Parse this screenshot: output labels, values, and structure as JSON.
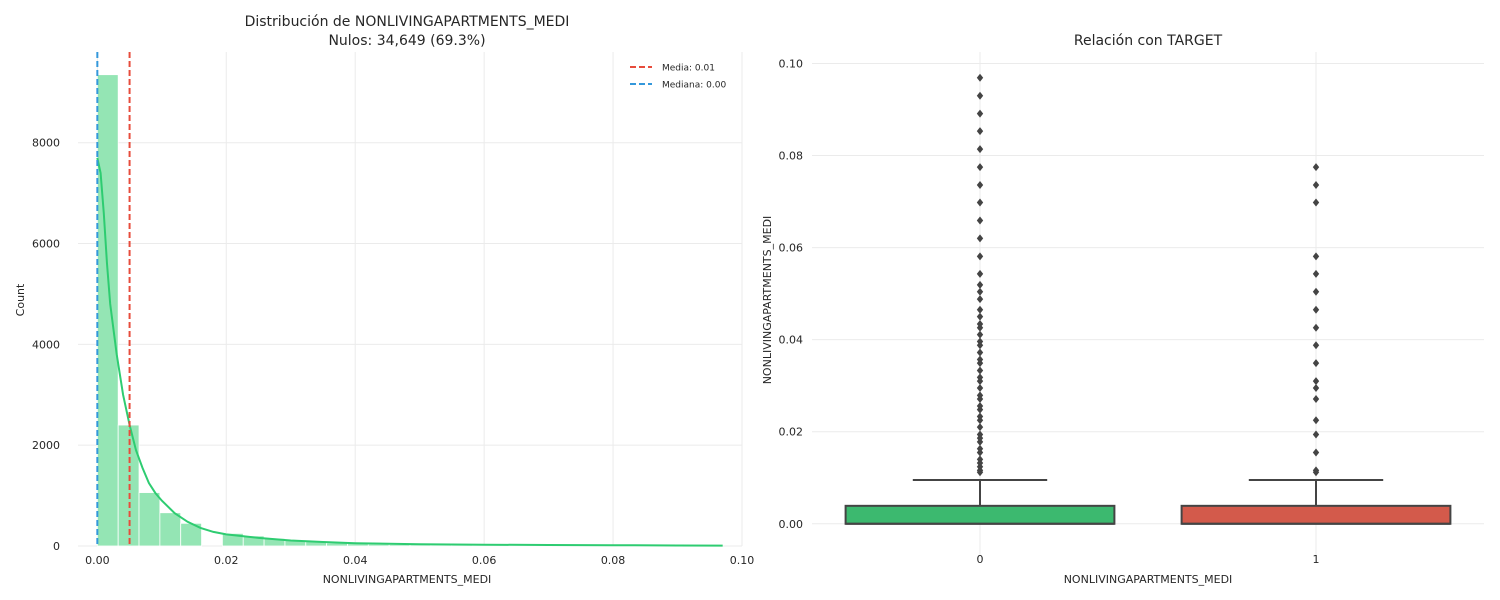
{
  "chart_data": [
    {
      "type": "histogram",
      "title_lines": [
        "Distribución de NONLIVINGAPARTMENTS_MEDI",
        "Nulos: 34,649 (69.3%)"
      ],
      "xlabel": "NONLIVINGAPARTMENTS_MEDI",
      "ylabel": "Count",
      "xlim": [
        -0.003,
        0.1
      ],
      "ylim": [
        0,
        9800
      ],
      "xticks": [
        0.0,
        0.02,
        0.04,
        0.06,
        0.08,
        0.1
      ],
      "xtick_labels": [
        "0.00",
        "0.02",
        "0.04",
        "0.06",
        "0.08",
        "0.10"
      ],
      "yticks": [
        0,
        2000,
        4000,
        6000,
        8000
      ],
      "ytick_labels": [
        "0",
        "2000",
        "4000",
        "6000",
        "8000"
      ],
      "grid": true,
      "bin_edges": [
        0.0,
        0.003233,
        0.006467,
        0.0097,
        0.012933,
        0.016167,
        0.0194,
        0.022633,
        0.025867,
        0.0291,
        0.032333,
        0.035567,
        0.0388,
        0.042033,
        0.045267,
        0.0485,
        0.051733,
        0.054967,
        0.0582,
        0.061433,
        0.064667,
        0.0679,
        0.071133,
        0.074367,
        0.0776,
        0.080833,
        0.084067,
        0.0873,
        0.090533,
        0.093767,
        0.097
      ],
      "counts": [
        9350,
        2400,
        1060,
        660,
        450,
        0,
        250,
        200,
        150,
        110,
        90,
        60,
        45,
        35,
        30,
        25,
        20,
        18,
        15,
        13,
        12,
        10,
        9,
        8,
        6,
        5,
        4,
        3,
        2,
        2
      ],
      "kde": {
        "x": [
          0.0,
          0.0005,
          0.001,
          0.0015,
          0.002,
          0.003,
          0.004,
          0.005,
          0.006,
          0.007,
          0.008,
          0.009,
          0.01,
          0.012,
          0.014,
          0.016,
          0.018,
          0.02,
          0.025,
          0.03,
          0.035,
          0.04,
          0.05,
          0.06,
          0.07,
          0.08,
          0.09,
          0.097
        ],
        "y": [
          7700,
          7400,
          6600,
          5600,
          4800,
          3800,
          3000,
          2400,
          1900,
          1550,
          1250,
          1050,
          900,
          650,
          480,
          360,
          280,
          230,
          160,
          110,
          80,
          55,
          35,
          25,
          20,
          15,
          10,
          8
        ]
      },
      "lines": [
        {
          "name": "Media: 0.01",
          "x": 0.005,
          "color": "#e74c3c"
        },
        {
          "name": "Mediana: 0.00",
          "x": 0.0,
          "color": "#3498db"
        }
      ],
      "legend_loc": "upper right",
      "colors": {
        "bars": "#94e5b4",
        "kde": "#2ecc71"
      }
    },
    {
      "type": "box",
      "title": "Relación con TARGET",
      "xlabel": "NONLIVINGAPARTMENTS_MEDI",
      "ylabel": "NONLIVINGAPARTMENTS_MEDI",
      "categories": [
        "0",
        "1"
      ],
      "ylim": [
        -0.007,
        0.1025
      ],
      "yticks": [
        0.0,
        0.02,
        0.04,
        0.06,
        0.08,
        0.1
      ],
      "ytick_labels": [
        "0.00",
        "0.02",
        "0.04",
        "0.06",
        "0.08",
        "0.10"
      ],
      "grid": true,
      "boxes": [
        {
          "category": "0",
          "q1": 0.0,
          "median": 0.0,
          "q3": 0.0039,
          "whisker_low": 0.0,
          "whisker_high": 0.0095,
          "color": "#3cb96f",
          "outliers": [
            0.0112,
            0.0116,
            0.0124,
            0.0132,
            0.014,
            0.0155,
            0.0163,
            0.0178,
            0.0186,
            0.0194,
            0.021,
            0.0225,
            0.0233,
            0.0248,
            0.0256,
            0.0271,
            0.0279,
            0.0295,
            0.031,
            0.0318,
            0.0333,
            0.0349,
            0.0357,
            0.0372,
            0.0388,
            0.0396,
            0.0411,
            0.0426,
            0.0434,
            0.045,
            0.0465,
            0.0488,
            0.0504,
            0.0519,
            0.0543,
            0.0581,
            0.062,
            0.0659,
            0.0698,
            0.0736,
            0.0775,
            0.0814,
            0.0853,
            0.0891,
            0.093,
            0.0969
          ]
        },
        {
          "category": "1",
          "q1": 0.0,
          "median": 0.0,
          "q3": 0.0039,
          "whisker_low": 0.0,
          "whisker_high": 0.0095,
          "color": "#d35a4b",
          "outliers": [
            0.0112,
            0.0116,
            0.0155,
            0.0194,
            0.0225,
            0.0271,
            0.0295,
            0.031,
            0.0349,
            0.0388,
            0.0426,
            0.0465,
            0.0504,
            0.0543,
            0.0581,
            0.0698,
            0.0736,
            0.0775
          ]
        }
      ],
      "colors": {
        "lines": "#444444",
        "outliers": "#444444"
      }
    }
  ]
}
